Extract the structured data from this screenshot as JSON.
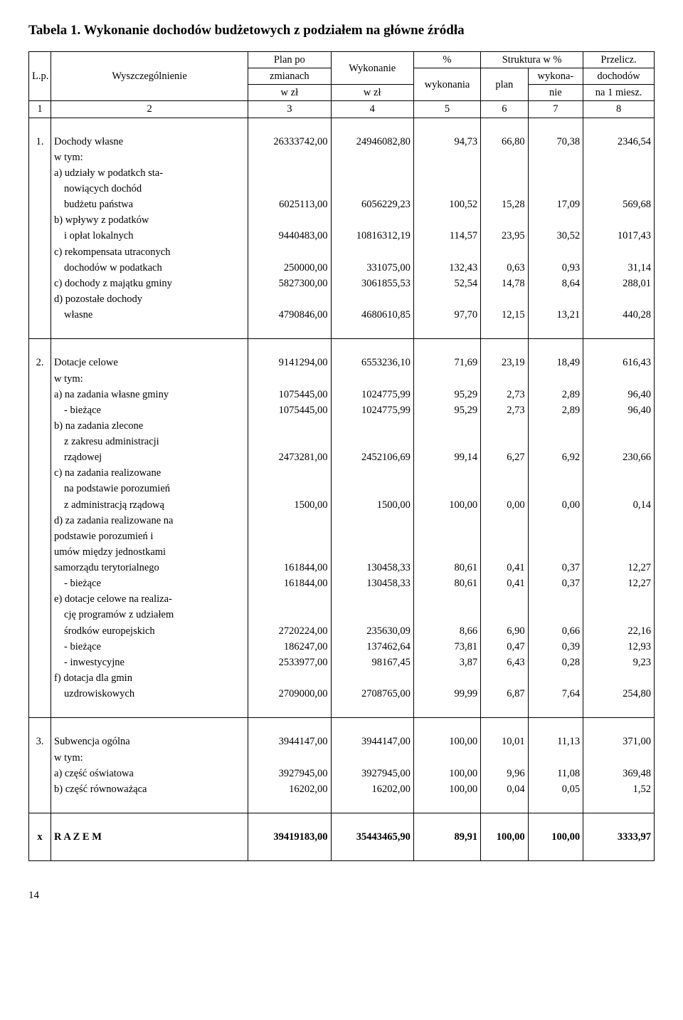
{
  "title": "Tabela 1. Wykonanie dochodów budżetowych z podziałem na główne źródła",
  "header": {
    "lp": "L.p.",
    "desc": "Wyszczególnienie",
    "plan_l1": "Plan po",
    "plan_l2": "zmianach",
    "plan_l3": "w zł",
    "wyk_l1": "Wykonanie",
    "wyk_l2": "w zł",
    "pct_l1": "%",
    "pct_l2": "wykonania",
    "struct": "Struktura w %",
    "struct_plan": "plan",
    "struct_wyk_l1": "wykona-",
    "struct_wyk_l2": "nie",
    "prz_l1": "Przelicz.",
    "prz_l2": "dochodów",
    "prz_l3": "na 1 miesz."
  },
  "colnums": [
    "1",
    "2",
    "3",
    "4",
    "5",
    "6",
    "7",
    "8"
  ],
  "b1": {
    "lp": "1.",
    "r0": {
      "d": "Dochody własne",
      "c": [
        "26333742,00",
        "24946082,80",
        "94,73",
        "66,80",
        "70,38",
        "2346,54"
      ]
    },
    "r1": {
      "d": "w tym:"
    },
    "r2a": {
      "d": "a) udziały w podatkch sta-"
    },
    "r2b": {
      "d": "nowiących dochód"
    },
    "r2c": {
      "d": "budżetu państwa",
      "c": [
        "6025113,00",
        "6056229,23",
        "100,52",
        "15,28",
        "17,09",
        "569,68"
      ]
    },
    "r3a": {
      "d": "b) wpływy z podatków"
    },
    "r3b": {
      "d": "i opłat lokalnych",
      "c": [
        "9440483,00",
        "10816312,19",
        "114,57",
        "23,95",
        "30,52",
        "1017,43"
      ]
    },
    "r4a": {
      "d": "c) rekompensata utraconych"
    },
    "r4b": {
      "d": "dochodów w podatkach",
      "c": [
        "250000,00",
        "331075,00",
        "132,43",
        "0,63",
        "0,93",
        "31,14"
      ]
    },
    "r5": {
      "d": "c) dochody z majątku gminy",
      "c": [
        "5827300,00",
        "3061855,53",
        "52,54",
        "14,78",
        "8,64",
        "288,01"
      ]
    },
    "r6a": {
      "d": "d) pozostałe dochody"
    },
    "r6b": {
      "d": "własne",
      "c": [
        "4790846,00",
        "4680610,85",
        "97,70",
        "12,15",
        "13,21",
        "440,28"
      ]
    }
  },
  "b2": {
    "lp": "2.",
    "r0": {
      "d": "Dotacje celowe",
      "c": [
        "9141294,00",
        "6553236,10",
        "71,69",
        "23,19",
        "18,49",
        "616,43"
      ]
    },
    "r1": {
      "d": "w tym:"
    },
    "r2": {
      "d": "a) na zadania własne gminy",
      "c": [
        "1075445,00",
        "1024775,99",
        "95,29",
        "2,73",
        "2,89",
        "96,40"
      ]
    },
    "r3": {
      "d": "- bieżące",
      "c": [
        "1075445,00",
        "1024775,99",
        "95,29",
        "2,73",
        "2,89",
        "96,40"
      ]
    },
    "r4a": {
      "d": "b) na zadania zlecone"
    },
    "r4b": {
      "d": "z zakresu administracji"
    },
    "r4c": {
      "d": "rządowej",
      "c": [
        "2473281,00",
        "2452106,69",
        "99,14",
        "6,27",
        "6,92",
        "230,66"
      ]
    },
    "r5a": {
      "d": "c) na zadania realizowane"
    },
    "r5b": {
      "d": "na podstawie porozumień"
    },
    "r5c": {
      "d": "z administracją rządową",
      "c": [
        "1500,00",
        "1500,00",
        "100,00",
        "0,00",
        "0,00",
        "0,14"
      ]
    },
    "r6a": {
      "d": "d) za zadania realizowane na"
    },
    "r6b": {
      "d": "podstawie porozumień i"
    },
    "r6c": {
      "d": "umów między jednostkami"
    },
    "r6d": {
      "d": "samorządu terytorialnego",
      "c": [
        "161844,00",
        "130458,33",
        "80,61",
        "0,41",
        "0,37",
        "12,27"
      ]
    },
    "r7": {
      "d": "- bieżące",
      "c": [
        "161844,00",
        "130458,33",
        "80,61",
        "0,41",
        "0,37",
        "12,27"
      ]
    },
    "r8a": {
      "d": "e) dotacje celowe na realiza-"
    },
    "r8b": {
      "d": "cję programów z udziałem"
    },
    "r8c": {
      "d": "środków europejskich",
      "c": [
        "2720224,00",
        "235630,09",
        "8,66",
        "6,90",
        "0,66",
        "22,16"
      ]
    },
    "r9": {
      "d": "- bieżące",
      "c": [
        "186247,00",
        "137462,64",
        "73,81",
        "0,47",
        "0,39",
        "12,93"
      ]
    },
    "r10": {
      "d": "- inwestycyjne",
      "c": [
        "2533977,00",
        "98167,45",
        "3,87",
        "6,43",
        "0,28",
        "9,23"
      ]
    },
    "r11a": {
      "d": "f) dotacja dla gmin"
    },
    "r11b": {
      "d": "uzdrowiskowych",
      "c": [
        "2709000,00",
        "2708765,00",
        "99,99",
        "6,87",
        "7,64",
        "254,80"
      ]
    }
  },
  "b3": {
    "lp": "3.",
    "r0": {
      "d": "Subwencja ogólna",
      "c": [
        "3944147,00",
        "3944147,00",
        "100,00",
        "10,01",
        "11,13",
        "371,00"
      ]
    },
    "r1": {
      "d": "w tym:"
    },
    "r2": {
      "d": "a) część oświatowa",
      "c": [
        "3927945,00",
        "3927945,00",
        "100,00",
        "9,96",
        "11,08",
        "369,48"
      ]
    },
    "r3": {
      "d": "b) część równoważąca",
      "c": [
        "16202,00",
        "16202,00",
        "100,00",
        "0,04",
        "0,05",
        "1,52"
      ]
    }
  },
  "total": {
    "lp": "x",
    "d": "R A Z E M",
    "c": [
      "39419183,00",
      "35443465,90",
      "89,91",
      "100,00",
      "100,00",
      "3333,97"
    ]
  },
  "page_number": "14"
}
